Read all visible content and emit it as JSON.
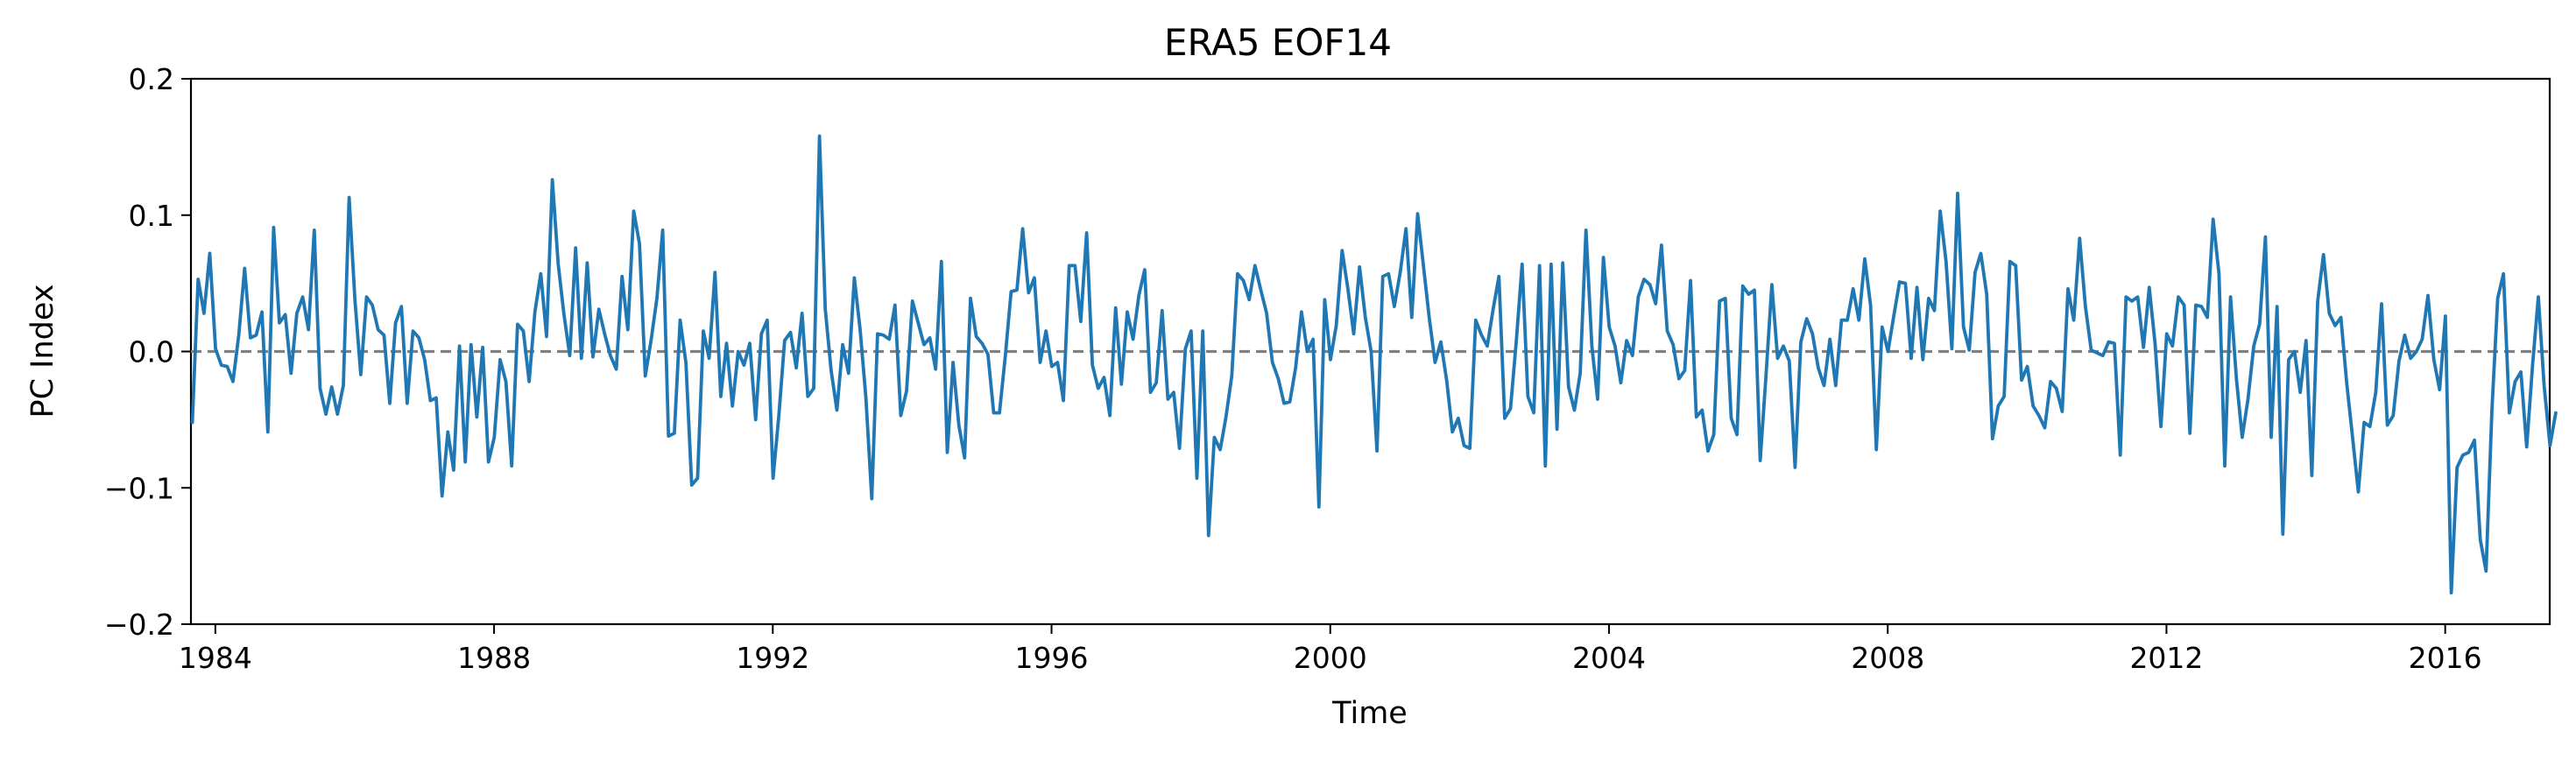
{
  "chart_data": {
    "type": "line",
    "title": "ERA5  EOF14",
    "xlabel": "Time",
    "ylabel": "PC Index",
    "xlim": [
      1983.65,
      2017.5
    ],
    "ylim": [
      -0.2,
      0.2
    ],
    "x_ticks": [
      1984,
      1988,
      1992,
      1996,
      2000,
      2004,
      2008,
      2012,
      2016
    ],
    "y_ticks": [
      -0.2,
      -0.1,
      0.0,
      0.1,
      0.2
    ],
    "x_tick_labels": [
      "1984",
      "1988",
      "1992",
      "1996",
      "2000",
      "2004",
      "2008",
      "2012",
      "2016"
    ],
    "y_tick_labels": [
      "−0.2",
      "−0.1",
      "0.0",
      "0.1",
      "0.2"
    ],
    "reference_line": {
      "y": 0.0,
      "style": "dashed",
      "color": "#808080"
    },
    "grid": false,
    "series": [
      {
        "color": "#1f77b4",
        "x_start": 1983.67,
        "x_step": 0.0833333,
        "values": [
          -0.052,
          0.053,
          0.028,
          0.072,
          0.002,
          -0.01,
          -0.011,
          -0.022,
          0.012,
          0.061,
          0.01,
          0.012,
          0.029,
          -0.059,
          0.091,
          0.021,
          0.027,
          -0.016,
          0.028,
          0.04,
          0.016,
          0.089,
          -0.027,
          -0.046,
          -0.026,
          -0.046,
          -0.025,
          0.113,
          0.038,
          -0.017,
          0.04,
          0.034,
          0.016,
          0.012,
          -0.038,
          0.021,
          0.033,
          -0.038,
          0.015,
          0.01,
          -0.006,
          -0.036,
          -0.034,
          -0.106,
          -0.059,
          -0.087,
          0.004,
          -0.081,
          0.005,
          -0.048,
          0.003,
          -0.081,
          -0.063,
          -0.006,
          -0.022,
          -0.084,
          0.02,
          0.015,
          -0.022,
          0.029,
          0.057,
          0.011,
          0.126,
          0.064,
          0.027,
          -0.003,
          0.076,
          -0.005,
          0.065,
          -0.004,
          0.031,
          0.013,
          -0.003,
          -0.013,
          0.055,
          0.016,
          0.103,
          0.079,
          -0.018,
          0.008,
          0.039,
          0.089,
          -0.062,
          -0.06,
          0.023,
          -0.008,
          -0.098,
          -0.093,
          0.015,
          -0.005,
          0.058,
          -0.033,
          0.006,
          -0.04,
          0.0,
          -0.01,
          0.006,
          -0.05,
          0.013,
          0.023,
          -0.093,
          -0.047,
          0.008,
          0.014,
          -0.012,
          0.028,
          -0.033,
          -0.027,
          0.158,
          0.031,
          -0.014,
          -0.043,
          0.005,
          -0.016,
          0.054,
          0.016,
          -0.034,
          -0.108,
          0.013,
          0.012,
          0.009,
          0.034,
          -0.047,
          -0.029,
          0.037,
          0.021,
          0.005,
          0.01,
          -0.013,
          0.066,
          -0.074,
          -0.008,
          -0.054,
          -0.078,
          0.039,
          0.011,
          0.006,
          -0.002,
          -0.045,
          -0.045,
          -0.003,
          0.044,
          0.045,
          0.09,
          0.043,
          0.054,
          -0.008,
          0.015,
          -0.011,
          -0.008,
          -0.036,
          0.063,
          0.063,
          0.022,
          0.087,
          -0.01,
          -0.027,
          -0.019,
          -0.047,
          0.032,
          -0.024,
          0.029,
          0.009,
          0.041,
          0.06,
          -0.03,
          -0.023,
          0.03,
          -0.035,
          -0.03,
          -0.071,
          0.002,
          0.015,
          -0.093,
          0.015,
          -0.135,
          -0.063,
          -0.072,
          -0.048,
          -0.018,
          0.057,
          0.052,
          0.038,
          0.063,
          0.045,
          0.028,
          -0.008,
          -0.02,
          -0.038,
          -0.037,
          -0.012,
          0.029,
          0.0,
          0.009,
          -0.114,
          0.038,
          -0.006,
          0.019,
          0.074,
          0.046,
          0.013,
          0.062,
          0.025,
          0.0,
          -0.073,
          0.055,
          0.057,
          0.033,
          0.058,
          0.09,
          0.025,
          0.101,
          0.063,
          0.025,
          -0.008,
          0.007,
          -0.021,
          -0.059,
          -0.049,
          -0.069,
          -0.071,
          0.023,
          0.012,
          0.004,
          0.031,
          0.055,
          -0.049,
          -0.042,
          0.008,
          0.064,
          -0.033,
          -0.045,
          0.063,
          -0.084,
          0.064,
          -0.057,
          0.065,
          -0.026,
          -0.043,
          -0.016,
          0.089,
          0.004,
          -0.035,
          0.069,
          0.018,
          0.004,
          -0.023,
          0.008,
          -0.003,
          0.04,
          0.053,
          0.049,
          0.035,
          0.078,
          0.015,
          0.005,
          -0.02,
          -0.014,
          0.052,
          -0.048,
          -0.043,
          -0.073,
          -0.061,
          0.037,
          0.039,
          -0.049,
          -0.061,
          0.048,
          0.042,
          0.045,
          -0.08,
          -0.018,
          0.049,
          -0.005,
          0.004,
          -0.007,
          -0.085,
          0.007,
          0.024,
          0.013,
          -0.012,
          -0.025,
          0.009,
          -0.025,
          0.023,
          0.023,
          0.046,
          0.023,
          0.068,
          0.034,
          -0.072,
          0.018,
          0.0,
          0.026,
          0.051,
          0.05,
          -0.005,
          0.047,
          -0.006,
          0.039,
          0.03,
          0.103,
          0.066,
          0.002,
          0.116,
          0.018,
          0.001,
          0.058,
          0.072,
          0.042,
          -0.064,
          -0.04,
          -0.033,
          0.066,
          0.063,
          -0.021,
          -0.011,
          -0.04,
          -0.047,
          -0.056,
          -0.022,
          -0.027,
          -0.044,
          0.046,
          0.023,
          0.083,
          0.033,
          0.001,
          -0.001,
          -0.003,
          0.007,
          0.006,
          -0.076,
          0.04,
          0.037,
          0.04,
          0.003,
          0.047,
          0.006,
          -0.055,
          0.013,
          0.004,
          0.04,
          0.034,
          -0.06,
          0.034,
          0.033,
          0.025,
          0.097,
          0.057,
          -0.084,
          0.04,
          -0.02,
          -0.063,
          -0.035,
          0.004,
          0.02,
          0.084,
          -0.063,
          0.033,
          -0.134,
          -0.006,
          0.0,
          -0.03,
          0.008,
          -0.091,
          0.037,
          0.071,
          0.028,
          0.019,
          0.025,
          -0.023,
          -0.063,
          -0.103,
          -0.052,
          -0.055,
          -0.03,
          0.035,
          -0.054,
          -0.047,
          -0.007,
          0.012,
          -0.005,
          0.0,
          0.009,
          0.041,
          -0.006,
          -0.028,
          0.026,
          -0.177,
          -0.085,
          -0.076,
          -0.074,
          -0.065,
          -0.138,
          -0.161,
          -0.043,
          0.039,
          0.057,
          -0.045,
          -0.022,
          -0.015,
          -0.07,
          -0.01,
          0.04,
          -0.025,
          -0.069,
          -0.045
        ]
      }
    ]
  }
}
